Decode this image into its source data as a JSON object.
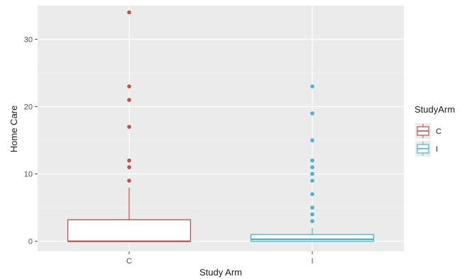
{
  "chart_data": {
    "type": "boxplot",
    "xlabel": "Study Arm",
    "ylabel": "Home Care",
    "categories": [
      "C",
      "I"
    ],
    "ylim": [
      -1.5,
      35
    ],
    "yticks": [
      0,
      10,
      20,
      30
    ],
    "grid": true,
    "legend": {
      "title": "StudyArm",
      "position": "right",
      "entries": [
        "C",
        "I"
      ]
    },
    "colors": {
      "C": "#c0504d",
      "I": "#4bb3d2"
    },
    "boxes": [
      {
        "category": "C",
        "min": 0,
        "q1": 0,
        "median": 0,
        "q3": 3.2,
        "whisker_high": 8,
        "outliers": [
          9,
          11,
          12,
          17,
          21,
          23,
          34
        ]
      },
      {
        "category": "I",
        "min": 0,
        "q1": 0,
        "median": 0.3,
        "q3": 1,
        "whisker_high": 2,
        "outliers": [
          3,
          4,
          5,
          7,
          9,
          10,
          11,
          12,
          15,
          19,
          23
        ]
      }
    ]
  }
}
